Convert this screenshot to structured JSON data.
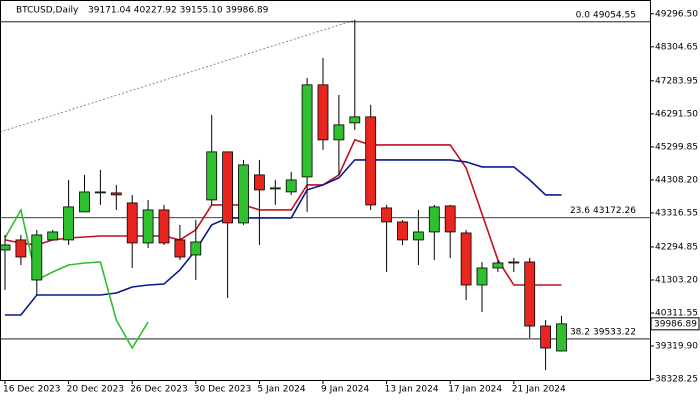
{
  "chart_data": {
    "type": "candlestick",
    "symbol": "BTCUSD,Daily",
    "header_ohlc": "39171.04 40227.92 39155.10 39986.89",
    "categories": [
      "16 Dec 2023",
      null,
      null,
      null,
      "20 Dec 2023",
      null,
      null,
      null,
      "26 Dec 2023",
      null,
      null,
      null,
      "30 Dec 2023",
      null,
      null,
      null,
      "5 Jan 2024",
      null,
      null,
      null,
      "9 Jan 2024",
      null,
      null,
      null,
      "13 Jan 2024",
      null,
      null,
      null,
      "17 Jan 2024",
      null,
      null,
      null,
      "21 Jan 2024",
      null,
      null,
      null
    ],
    "open": [
      42205,
      42506,
      41303,
      42506,
      42506,
      43347,
      43948,
      43918,
      43617,
      42415,
      43407,
      42506,
      42054,
      43707,
      45150,
      43016,
      44458,
      44068,
      43948,
      44398,
      47163,
      45510,
      46021,
      46201,
      43467,
      43046,
      42506,
      42746,
      43527,
      42716,
      41153,
      41664,
      41844,
      41844,
      39921,
      39171.04
    ],
    "close": [
      42355,
      41994,
      42656,
      42746,
      43497,
      43947,
      43948,
      43858,
      42415,
      43407,
      42415,
      41994,
      42445,
      45150,
      43016,
      44759,
      44008,
      44068,
      44308,
      47163,
      45510,
      45961,
      46201,
      43557,
      43046,
      42506,
      42746,
      43497,
      42746,
      41153,
      41664,
      41814,
      41814,
      39921,
      39260,
      39986.89
    ],
    "high": [
      42656,
      42656,
      42806,
      42806,
      44308,
      44458,
      44608,
      44158,
      43858,
      43707,
      43557,
      42956,
      43106,
      46261,
      45150,
      44909,
      44909,
      44308,
      44548,
      47373,
      47974,
      46862,
      49116,
      46562,
      43557,
      43106,
      43406,
      43557,
      43557,
      42806,
      41844,
      41904,
      41964,
      41964,
      40101,
      40227.92
    ],
    "low": [
      41004,
      41754,
      40852,
      42506,
      42355,
      43347,
      43557,
      43407,
      41664,
      42265,
      42355,
      41904,
      41303,
      43557,
      40762,
      42956,
      42355,
      43557,
      43858,
      43347,
      45210,
      44458,
      45811,
      43407,
      41544,
      42355,
      41754,
      41904,
      41964,
      40702,
      40342,
      41544,
      41544,
      39560,
      38598,
      39155.1
    ],
    "up_color": "#2fbf2f",
    "down_color": "#e8261f",
    "series": [
      {
        "color": "#c0111f",
        "values": [
          42506,
          42415,
          42355,
          42506,
          42565,
          42595,
          42625,
          42625,
          42625,
          42625,
          42625,
          42506,
          42806,
          43557,
          43557,
          43557,
          43407,
          43407,
          43407,
          44158,
          44158,
          44458,
          45510,
          45360,
          45360,
          45360,
          45360,
          45360,
          45360,
          44669,
          43286,
          41904,
          41153,
          41153,
          41153,
          41153
        ]
      },
      {
        "color": "#0a1a8c",
        "values": [
          40251,
          40251,
          40852,
          40852,
          40852,
          40852,
          40852,
          40912,
          41093,
          41153,
          41183,
          41604,
          42205,
          42956,
          43166,
          43166,
          43166,
          43166,
          43166,
          44008,
          44158,
          44368,
          44909,
          44909,
          44909,
          44909,
          44909,
          44909,
          44909,
          44849,
          44699,
          44699,
          44699,
          44308,
          43858,
          43858
        ]
      },
      {
        "color": "#2fbf2f",
        "values": [
          42565,
          43407,
          41303,
          41544,
          41754,
          41814,
          41844,
          40101,
          39260,
          40041,
          null,
          null,
          null,
          null,
          null,
          null,
          null,
          null,
          null,
          null,
          null,
          null,
          null,
          null,
          null,
          null,
          null,
          null,
          null,
          null,
          null,
          null,
          null,
          null,
          null,
          null
        ]
      }
    ],
    "levels": [
      {
        "name": "0.0",
        "value": 49054.55
      },
      {
        "name": "23.6",
        "value": 43172.26
      },
      {
        "name": "38.2",
        "value": 39533.22
      }
    ],
    "ylim": [
      38300,
      49650
    ],
    "yticks": [
      {
        "value": 49296.5,
        "label": "49296.50"
      },
      48304.65,
      47283.95,
      {
        "value": 46291.5,
        "label": "46291.50"
      },
      45299.85,
      {
        "value": 44308.2,
        "label": "44308.20"
      },
      43316.55,
      42294.85,
      {
        "value": 41303.2,
        "label": "41303.20"
      },
      40311.55,
      {
        "value": 39319.9,
        "label": "39319.90"
      },
      38328.25
    ]
  }
}
